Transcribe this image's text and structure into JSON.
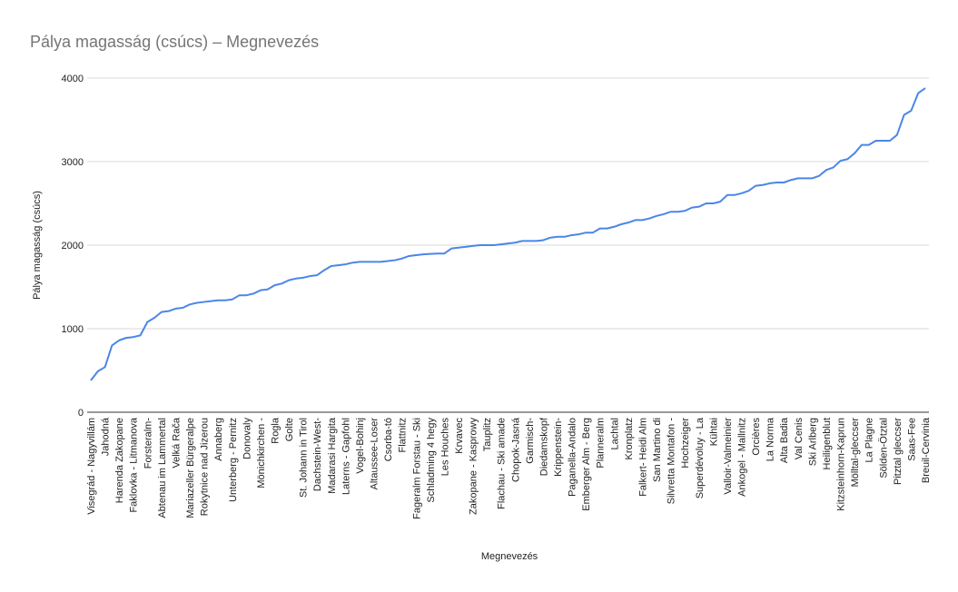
{
  "chart_data": {
    "type": "line",
    "title": "Pálya magasság (csúcs) – Megnevezés",
    "x_label": "Megnevezés",
    "y_label": "Pálya magasság (csúcs)",
    "color": "#4a86e8",
    "grid": true,
    "ylim": [
      0,
      4000
    ],
    "yticks": [
      0,
      1000,
      2000,
      3000,
      4000
    ],
    "categories": [
      "Visegrád - Nagyvillám",
      null,
      "Jahodná",
      null,
      "Harenda Zakopane",
      null,
      "Faklovka - Litmanova",
      null,
      "Forsteralm-",
      null,
      "Abtenau im Lammertal",
      null,
      "Velká Rača",
      null,
      "Mariazeller Bürgeralpe",
      null,
      "Rokytnice nad Jizerou",
      null,
      "Annaberg",
      null,
      "Unterberg - Pernitz",
      null,
      "Donovaly",
      null,
      "Mönichkirchen -",
      null,
      "Rogla",
      null,
      "Golte",
      null,
      "St. Johann in Tirol",
      null,
      "Dachstein-West-",
      null,
      "Madarasi Hargita",
      null,
      "Laterns - Gapfohl",
      null,
      "Vogel-Bohinj",
      null,
      "Altaussee-Loser",
      null,
      "Csorba-tó",
      null,
      "Flattnitz",
      null,
      "Fageralm Forstau - Ski",
      null,
      "Schladming 4 hegy",
      null,
      "Les Houches",
      null,
      "Krvavec",
      null,
      "Zakopane - Kasprowy",
      null,
      "Tauplitz",
      null,
      "Flachau - Ski amade",
      null,
      "Chopok-Jasná",
      null,
      "Garmisch-",
      null,
      "Diedamskopf",
      null,
      "Krippenstein-",
      null,
      "Paganella-Andalo",
      null,
      "Emberger Alm - Berg",
      null,
      "Planneralm",
      null,
      "Lachtal",
      null,
      "Kronplatz",
      null,
      "Falkert- Heidi Alm",
      null,
      "San Martino di",
      null,
      "Silvretta Montafon -",
      null,
      "Hochzeiger",
      null,
      "Superdévoluy - La",
      null,
      "Kühtai",
      null,
      "Valloir-Valmeinier",
      null,
      "Ankogel - Mallnitz",
      null,
      "Orcières",
      null,
      "La Norma",
      null,
      "Alta Badia",
      null,
      "Val Cenis",
      null,
      "Ski Arlberg",
      null,
      "Heiligenblut",
      null,
      "Kitzsteinhorn-Kaprun",
      null,
      "Mölltal-gleccser",
      null,
      "La Plagne",
      null,
      "Sölden-Ötztal",
      null,
      "Pitztal gleccser",
      null,
      "Saas-Fee",
      null,
      "Breuil-Cervinia"
    ],
    "values": [
      380,
      490,
      540,
      800,
      860,
      890,
      900,
      920,
      1080,
      1130,
      1200,
      1210,
      1240,
      1250,
      1290,
      1310,
      1320,
      1330,
      1340,
      1340,
      1350,
      1400,
      1400,
      1420,
      1460,
      1470,
      1520,
      1540,
      1580,
      1600,
      1610,
      1630,
      1640,
      1700,
      1750,
      1760,
      1770,
      1790,
      1800,
      1800,
      1800,
      1800,
      1810,
      1820,
      1840,
      1870,
      1880,
      1890,
      1895,
      1900,
      1900,
      1960,
      1970,
      1980,
      1990,
      2000,
      2000,
      2000,
      2010,
      2020,
      2030,
      2050,
      2050,
      2050,
      2060,
      2090,
      2100,
      2100,
      2120,
      2130,
      2150,
      2150,
      2200,
      2200,
      2220,
      2250,
      2270,
      2300,
      2300,
      2320,
      2350,
      2370,
      2400,
      2400,
      2410,
      2450,
      2460,
      2500,
      2500,
      2520,
      2600,
      2600,
      2620,
      2650,
      2710,
      2720,
      2740,
      2750,
      2750,
      2780,
      2800,
      2800,
      2800,
      2830,
      2900,
      2930,
      3010,
      3030,
      3100,
      3200,
      3200,
      3250,
      3250,
      3250,
      3320,
      3560,
      3610,
      3820,
      3880
    ]
  }
}
